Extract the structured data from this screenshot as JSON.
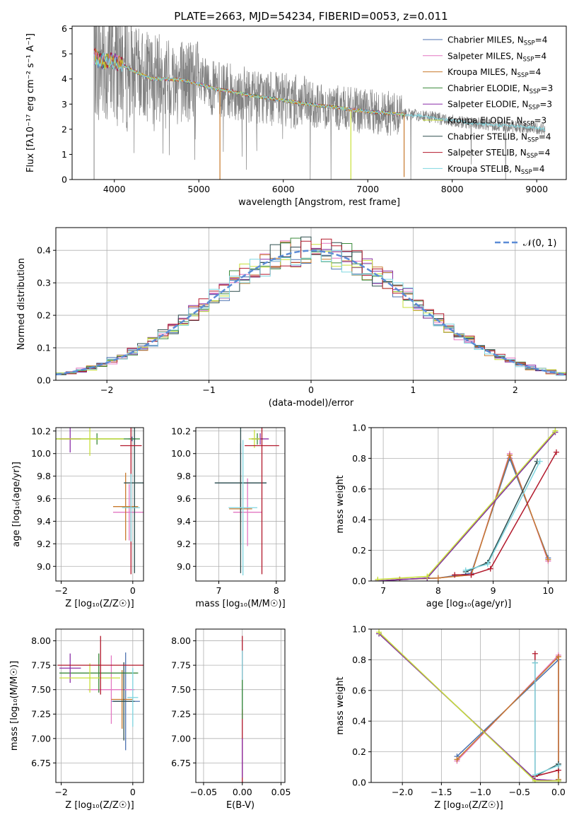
{
  "figure": {
    "title": "PLATE=2663, MJD=54234, FIBERID=0053, z=0.011"
  },
  "series_legend": [
    {
      "name": "Chabrier MILES",
      "n": "4",
      "color": "#4c72b0"
    },
    {
      "name": "Salpeter MILES",
      "n": "4",
      "color": "#e377c2"
    },
    {
      "name": "Kroupa MILES",
      "n": "4",
      "color": "#c7792b"
    },
    {
      "name": "Chabrier ELODIE",
      "n": "3",
      "color": "#3a8a3a"
    },
    {
      "name": "Salpeter ELODIE",
      "n": "3",
      "color": "#8b2fa8"
    },
    {
      "name": "Kroupa ELODIE",
      "n": "3",
      "color": "#c8e03a"
    },
    {
      "name": "Chabrier STELIB",
      "n": "4",
      "color": "#2f4f4f"
    },
    {
      "name": "Salpeter STELIB",
      "n": "4",
      "color": "#b2182b"
    },
    {
      "name": "Kroupa STELIB",
      "n": "4",
      "color": "#7fd6e0"
    }
  ],
  "legend_sub": {
    "n_prefix": "N",
    "n_sub": "SSP",
    "eq": "="
  },
  "chart_data": [
    {
      "id": "spectrum",
      "type": "line",
      "xlabel": "wavelength [Angstrom, rest frame]",
      "ylabel": "Flux [fλ10⁻¹⁷ erg cm⁻² s⁻¹ A⁻¹]",
      "xlim": [
        3500,
        9350
      ],
      "ylim": [
        0,
        6.1
      ],
      "xticks": [
        4000,
        5000,
        6000,
        7000,
        8000,
        9000
      ],
      "yticks": [
        0,
        1,
        2,
        3,
        4,
        5,
        6
      ],
      "continuum": {
        "x": [
          3760,
          3850,
          3950,
          4050,
          4150,
          4300,
          4450,
          4600,
          4800,
          5000,
          5200,
          5400,
          5600,
          5800,
          6000,
          6200,
          6400,
          6600,
          6800,
          7000,
          7200,
          7400,
          7600,
          7800,
          8000,
          8200,
          8400,
          8600,
          8800,
          9000,
          9100
        ],
        "y": [
          4.9,
          4.7,
          4.75,
          4.65,
          4.45,
          4.2,
          4.0,
          4.0,
          3.95,
          3.8,
          3.6,
          3.5,
          3.35,
          3.25,
          3.15,
          3.05,
          2.95,
          2.88,
          2.78,
          2.7,
          2.65,
          2.6,
          2.55,
          2.45,
          2.35,
          2.25,
          2.2,
          2.15,
          2.1,
          2.05,
          2.0
        ]
      },
      "model_range": [
        3760,
        7450
      ],
      "data_range": [
        3760,
        9100
      ]
    },
    {
      "id": "residual_hist",
      "type": "area",
      "xlabel": "(data-model)/error",
      "ylabel": "Normed distribution",
      "xlim": [
        -2.5,
        2.5
      ],
      "ylim": [
        0,
        0.47
      ],
      "xticks": [
        -2,
        -1,
        0,
        1,
        2
      ],
      "yticks": [
        0.0,
        0.1,
        0.2,
        0.3,
        0.4
      ],
      "legend": "𝒩(0, 1)",
      "bin_width": 0.1,
      "bin_centers_start": -2.45,
      "n_bins": 50
    },
    {
      "id": "age_vs_Z",
      "type": "scatter",
      "xlabel": "Z [log₁₀(Z/Z☉)]",
      "ylabel": "age  [log₁₀(age/yr)]",
      "xlim": [
        -2.15,
        0.3
      ],
      "ylim": [
        8.87,
        10.23
      ],
      "xticks": [
        -2,
        0
      ],
      "yticks": [
        9.0,
        9.2,
        9.4,
        9.6,
        9.8,
        10.0,
        10.2
      ],
      "points": [
        {
          "s": 0,
          "x": -0.02,
          "y": 10.13,
          "xe": 0.1,
          "ye": 0.02
        },
        {
          "s": 1,
          "x": -0.1,
          "y": 9.48,
          "xe": 0.45,
          "ye": 0.25
        },
        {
          "s": 2,
          "x": -0.2,
          "y": 9.53,
          "xe": 0.35,
          "ye": 0.3
        },
        {
          "s": 3,
          "x": -1.0,
          "y": 10.13,
          "xe": 1.2,
          "ye": 0.05
        },
        {
          "s": 4,
          "x": -1.75,
          "y": 10.13,
          "xe": 0.3,
          "ye": 0.12
        },
        {
          "s": 5,
          "x": -1.2,
          "y": 10.13,
          "xe": 0.95,
          "ye": 0.15
        },
        {
          "s": 6,
          "x": 0.05,
          "y": 9.74,
          "xe": 0.3,
          "ye": 0.8
        },
        {
          "s": 7,
          "x": -0.05,
          "y": 10.07,
          "xe": 0.3,
          "ye": 1.14
        },
        {
          "s": 8,
          "x": -0.05,
          "y": 9.52,
          "xe": 0.25,
          "ye": 0.3
        }
      ]
    },
    {
      "id": "age_vs_mass",
      "type": "scatter",
      "xlabel": "mass [log₁₀(M/M☉)]",
      "ylabel": "",
      "xlim": [
        6.6,
        8.15
      ],
      "ylim": [
        8.87,
        10.23
      ],
      "xticks": [
        7,
        8
      ],
      "yticks": [
        9.0,
        9.2,
        9.4,
        9.6,
        9.8,
        10.0,
        10.2
      ],
      "points": [
        {
          "s": 0,
          "x": 7.38,
          "y": 9.74,
          "xe": 0.45,
          "ye": 0.35
        },
        {
          "s": 1,
          "x": 7.5,
          "y": 9.48,
          "xe": 0.25,
          "ye": 0.3
        },
        {
          "s": 2,
          "x": 7.38,
          "y": 9.51,
          "xe": 0.2,
          "ye": 0.3
        },
        {
          "s": 3,
          "x": 7.67,
          "y": 10.13,
          "xe": 0.1,
          "ye": 0.05
        },
        {
          "s": 4,
          "x": 7.72,
          "y": 10.13,
          "xe": 0.15,
          "ye": 0.05
        },
        {
          "s": 5,
          "x": 7.62,
          "y": 10.13,
          "xe": 0.1,
          "ye": 0.08
        },
        {
          "s": 6,
          "x": 7.38,
          "y": 9.74,
          "xe": 0.45,
          "ye": 0.8
        },
        {
          "s": 7,
          "x": 7.75,
          "y": 10.07,
          "xe": 0.3,
          "ye": 1.14
        },
        {
          "s": 8,
          "x": 7.42,
          "y": 9.52,
          "xe": 0.25,
          "ye": 0.6
        }
      ]
    },
    {
      "id": "weight_vs_age",
      "type": "line",
      "xlabel": "age  [log₁₀(age/yr)]",
      "ylabel": "mass weight",
      "xlim": [
        6.78,
        10.33
      ],
      "ylim": [
        0,
        1
      ],
      "xticks": [
        7,
        8,
        9,
        10
      ],
      "yticks": [
        0.0,
        0.2,
        0.4,
        0.6,
        0.8,
        1.0
      ],
      "series": [
        {
          "s": 0,
          "x": [
            6.9,
            7.3,
            8.0,
            8.6,
            9.3,
            10.0
          ],
          "y": [
            0.0,
            0.01,
            0.02,
            0.05,
            0.8,
            0.15
          ]
        },
        {
          "s": 1,
          "x": [
            6.9,
            7.3,
            8.0,
            8.6,
            9.3,
            10.0
          ],
          "y": [
            0.0,
            0.01,
            0.02,
            0.04,
            0.83,
            0.13
          ]
        },
        {
          "s": 2,
          "x": [
            6.9,
            7.3,
            8.0,
            8.6,
            9.3,
            10.0
          ],
          "y": [
            0.0,
            0.01,
            0.02,
            0.04,
            0.82,
            0.14
          ]
        },
        {
          "s": 3,
          "x": [
            6.9,
            7.8,
            10.13
          ],
          "y": [
            0.0,
            0.02,
            0.97
          ]
        },
        {
          "s": 4,
          "x": [
            6.9,
            7.8,
            10.13
          ],
          "y": [
            0.0,
            0.02,
            0.97
          ]
        },
        {
          "s": 5,
          "x": [
            6.9,
            7.8,
            10.13
          ],
          "y": [
            0.01,
            0.03,
            0.98
          ]
        },
        {
          "s": 6,
          "x": [
            8.5,
            8.9,
            9.8
          ],
          "y": [
            0.06,
            0.12,
            0.78
          ]
        },
        {
          "s": 7,
          "x": [
            8.3,
            8.6,
            8.95,
            10.15
          ],
          "y": [
            0.04,
            0.04,
            0.08,
            0.84
          ]
        },
        {
          "s": 8,
          "x": [
            8.5,
            8.9,
            9.85
          ],
          "y": [
            0.07,
            0.11,
            0.78
          ]
        }
      ]
    },
    {
      "id": "mass_vs_Z",
      "type": "scatter",
      "xlabel": "Z [log₁₀(Z/Z☉)]",
      "ylabel": "mass [log₁₀(M/M☉)]",
      "xlim": [
        -2.15,
        0.3
      ],
      "ylim": [
        6.55,
        8.12
      ],
      "xticks": [
        -2,
        0
      ],
      "yticks": [
        6.75,
        7.0,
        7.25,
        7.5,
        7.75,
        8.0
      ],
      "points": [
        {
          "s": 0,
          "x": -0.2,
          "y": 7.38,
          "xe": 0.4,
          "ye": 0.5
        },
        {
          "s": 1,
          "x": -0.6,
          "y": 7.5,
          "xe": 0.65,
          "ye": 0.35
        },
        {
          "s": 2,
          "x": -0.3,
          "y": 7.4,
          "xe": 0.3,
          "ye": 0.3
        },
        {
          "s": 3,
          "x": -0.95,
          "y": 7.67,
          "xe": 1.1,
          "ye": 0.2
        },
        {
          "s": 4,
          "x": -1.75,
          "y": 7.72,
          "xe": 0.3,
          "ye": 0.15
        },
        {
          "s": 5,
          "x": -1.2,
          "y": 7.62,
          "xe": 0.85,
          "ye": 0.15
        },
        {
          "s": 6,
          "x": -0.25,
          "y": 7.38,
          "xe": 0.3,
          "ye": 0.4
        },
        {
          "s": 7,
          "x": -0.9,
          "y": 7.75,
          "xe": 1.2,
          "ye": 0.3
        },
        {
          "s": 8,
          "x": 0.0,
          "y": 7.42,
          "xe": 0.15,
          "ye": 0.3
        }
      ]
    },
    {
      "id": "mass_vs_ebv",
      "type": "scatter",
      "xlabel": "E(B-V)",
      "ylabel": "",
      "xlim": [
        -0.06,
        0.055
      ],
      "ylim": [
        6.55,
        8.12
      ],
      "xticks": [
        -0.05,
        0.0,
        0.05
      ],
      "yticks": [
        6.75,
        7.0,
        7.25,
        7.5,
        7.75,
        8.0
      ],
      "points": [
        {
          "s": 7,
          "x": 0.0,
          "y": 7.3,
          "xe": 0.0,
          "ye": 0.75
        },
        {
          "s": 4,
          "x": 0.0,
          "y": 6.8,
          "xe": 0.0,
          "ye": 0.2
        },
        {
          "s": 8,
          "x": 0.0,
          "y": 7.6,
          "xe": 0.0,
          "ye": 0.3
        },
        {
          "s": 3,
          "x": 0.0,
          "y": 7.4,
          "xe": 0.0,
          "ye": 0.2
        }
      ]
    },
    {
      "id": "weight_vs_Z",
      "type": "line",
      "xlabel": "Z [log₁₀(Z/Z☉)]",
      "ylabel": "mass weight",
      "xlim": [
        -2.4,
        0.1
      ],
      "ylim": [
        0,
        1
      ],
      "xticks": [
        -2.0,
        -1.5,
        -1.0,
        -0.5,
        0.0
      ],
      "yticks": [
        0.0,
        0.2,
        0.4,
        0.6,
        0.8,
        1.0
      ],
      "series": [
        {
          "s": 0,
          "x": [
            -1.3,
            0.0,
            0.0
          ],
          "y": [
            0.17,
            0.8,
            0.02
          ]
        },
        {
          "s": 1,
          "x": [
            -1.3,
            0.0,
            0.0
          ],
          "y": [
            0.14,
            0.83,
            0.01
          ]
        },
        {
          "s": 2,
          "x": [
            -1.3,
            0.0,
            0.0
          ],
          "y": [
            0.15,
            0.82,
            0.02
          ]
        },
        {
          "s": 3,
          "x": [
            -2.3,
            -0.3,
            0.0
          ],
          "y": [
            0.97,
            0.02,
            0.01
          ]
        },
        {
          "s": 4,
          "x": [
            -2.3,
            -0.3,
            0.0
          ],
          "y": [
            0.97,
            0.02,
            0.01
          ]
        },
        {
          "s": 5,
          "x": [
            -2.3,
            -0.3,
            0.0
          ],
          "y": [
            0.98,
            0.01,
            0.01
          ]
        },
        {
          "s": 6,
          "x": [
            -0.3,
            -0.3,
            0.0
          ],
          "y": [
            0.78,
            0.04,
            0.12
          ]
        },
        {
          "s": 7,
          "x": [
            -0.3,
            -0.3,
            0.0
          ],
          "y": [
            0.84,
            0.04,
            0.08
          ]
        },
        {
          "s": 8,
          "x": [
            -0.3,
            -0.3,
            0.0
          ],
          "y": [
            0.78,
            0.05,
            0.11
          ]
        }
      ]
    }
  ]
}
